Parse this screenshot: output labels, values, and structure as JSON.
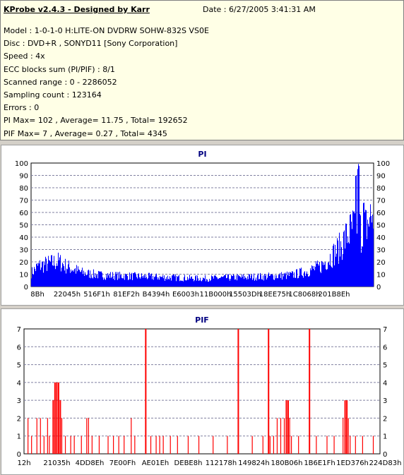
{
  "header": {
    "title": "KProbe v2.4.3 - Designed by Karr",
    "date": "Date : 6/27/2005 3:41:31 AM",
    "lines": [
      "Model : 1-0-1-0 H:LITE-ON DVDRW SOHW-832S  VS0E",
      "Disc : DVD+R , SONYD11 [Sony Corporation]",
      "Speed : 4x",
      "ECC blocks sum (PI/PIF) : 8/1",
      "Scanned range : 0 - 2286052",
      "Sampling count : 123164",
      "Errors : 0",
      "PI Max= 102 , Average= 11.75 , Total= 192652",
      "PIF Max= 7 , Average= 0.27 , Total= 4345"
    ]
  },
  "colors": {
    "pi": "#0000ff",
    "pif": "#ff0000",
    "grid": "#8080a0",
    "info_bg": "#ffffe6"
  },
  "chart_data": [
    {
      "type": "bar",
      "title": "PI",
      "ylim": [
        0,
        100
      ],
      "yticks": [
        0,
        10,
        20,
        30,
        40,
        50,
        60,
        70,
        80,
        90,
        100
      ],
      "grid": true,
      "xtick_labels": [
        "8Bh",
        "22045h",
        "516F1h",
        "81EF2h",
        "B4394h",
        "E6003h",
        "11B000h",
        "15503Dh",
        "18EE75h",
        "1C8068h",
        "201B8Eh"
      ],
      "profile": {
        "x_fraction": [
          0,
          0.02,
          0.05,
          0.08,
          0.1,
          0.15,
          0.2,
          0.3,
          0.4,
          0.5,
          0.6,
          0.7,
          0.76,
          0.8,
          0.84,
          0.86,
          0.88,
          0.9,
          0.92,
          0.94,
          0.955,
          0.965,
          0.98,
          1.0
        ],
        "base_level": [
          12,
          18,
          20,
          22,
          18,
          12,
          10,
          9,
          8,
          7,
          8,
          9,
          10,
          13,
          17,
          22,
          28,
          34,
          44,
          52,
          55,
          45,
          55,
          65
        ]
      },
      "peaks": [
        {
          "x_fraction": 0.955,
          "value": 102
        },
        {
          "x_fraction": 0.948,
          "value": 92
        },
        {
          "x_fraction": 0.97,
          "value": 70
        }
      ]
    },
    {
      "type": "bar",
      "title": "PIF",
      "ylim": [
        0,
        7
      ],
      "yticks": [
        0,
        1,
        2,
        3,
        4,
        5,
        6,
        7
      ],
      "grid": true,
      "xtick_labels": [
        "12h",
        "21035h",
        "4DD8Eh",
        "7E00Fh",
        "AE01Eh",
        "DEBE8h",
        "112178h",
        "149824h",
        "180B06h",
        "1B6E1Fh",
        "1ED376h",
        "224D83h"
      ],
      "spikes": [
        {
          "x_fraction": 0.01,
          "value": 2
        },
        {
          "x_fraction": 0.02,
          "value": 1
        },
        {
          "x_fraction": 0.035,
          "value": 2
        },
        {
          "x_fraction": 0.045,
          "value": 2
        },
        {
          "x_fraction": 0.055,
          "value": 1
        },
        {
          "x_fraction": 0.065,
          "value": 2
        },
        {
          "x_fraction": 0.07,
          "value": 1
        },
        {
          "x_fraction": 0.08,
          "value": 3
        },
        {
          "x_fraction": 0.085,
          "value": 4
        },
        {
          "x_fraction": 0.09,
          "value": 4
        },
        {
          "x_fraction": 0.095,
          "value": 4
        },
        {
          "x_fraction": 0.1,
          "value": 3
        },
        {
          "x_fraction": 0.105,
          "value": 2
        },
        {
          "x_fraction": 0.115,
          "value": 1
        },
        {
          "x_fraction": 0.13,
          "value": 1
        },
        {
          "x_fraction": 0.14,
          "value": 1
        },
        {
          "x_fraction": 0.16,
          "value": 1
        },
        {
          "x_fraction": 0.175,
          "value": 2
        },
        {
          "x_fraction": 0.18,
          "value": 2
        },
        {
          "x_fraction": 0.19,
          "value": 1
        },
        {
          "x_fraction": 0.21,
          "value": 1
        },
        {
          "x_fraction": 0.235,
          "value": 1
        },
        {
          "x_fraction": 0.25,
          "value": 1
        },
        {
          "x_fraction": 0.265,
          "value": 1
        },
        {
          "x_fraction": 0.28,
          "value": 1
        },
        {
          "x_fraction": 0.3,
          "value": 2
        },
        {
          "x_fraction": 0.31,
          "value": 1
        },
        {
          "x_fraction": 0.34,
          "value": 7
        },
        {
          "x_fraction": 0.355,
          "value": 1
        },
        {
          "x_fraction": 0.37,
          "value": 1
        },
        {
          "x_fraction": 0.38,
          "value": 1
        },
        {
          "x_fraction": 0.39,
          "value": 1
        },
        {
          "x_fraction": 0.41,
          "value": 1
        },
        {
          "x_fraction": 0.43,
          "value": 1
        },
        {
          "x_fraction": 0.46,
          "value": 1
        },
        {
          "x_fraction": 0.49,
          "value": 1
        },
        {
          "x_fraction": 0.53,
          "value": 1
        },
        {
          "x_fraction": 0.57,
          "value": 1
        },
        {
          "x_fraction": 0.6,
          "value": 7
        },
        {
          "x_fraction": 0.64,
          "value": 1
        },
        {
          "x_fraction": 0.67,
          "value": 1
        },
        {
          "x_fraction": 0.685,
          "value": 7
        },
        {
          "x_fraction": 0.69,
          "value": 1
        },
        {
          "x_fraction": 0.7,
          "value": 1
        },
        {
          "x_fraction": 0.71,
          "value": 2
        },
        {
          "x_fraction": 0.72,
          "value": 2
        },
        {
          "x_fraction": 0.73,
          "value": 2
        },
        {
          "x_fraction": 0.735,
          "value": 3
        },
        {
          "x_fraction": 0.74,
          "value": 3
        },
        {
          "x_fraction": 0.745,
          "value": 2
        },
        {
          "x_fraction": 0.75,
          "value": 1
        },
        {
          "x_fraction": 0.77,
          "value": 1
        },
        {
          "x_fraction": 0.8,
          "value": 7
        },
        {
          "x_fraction": 0.82,
          "value": 1
        },
        {
          "x_fraction": 0.85,
          "value": 1
        },
        {
          "x_fraction": 0.87,
          "value": 1
        },
        {
          "x_fraction": 0.895,
          "value": 2
        },
        {
          "x_fraction": 0.9,
          "value": 3
        },
        {
          "x_fraction": 0.905,
          "value": 3
        },
        {
          "x_fraction": 0.91,
          "value": 2
        },
        {
          "x_fraction": 0.915,
          "value": 1
        },
        {
          "x_fraction": 0.93,
          "value": 1
        },
        {
          "x_fraction": 0.95,
          "value": 1
        },
        {
          "x_fraction": 0.98,
          "value": 1
        }
      ]
    }
  ]
}
